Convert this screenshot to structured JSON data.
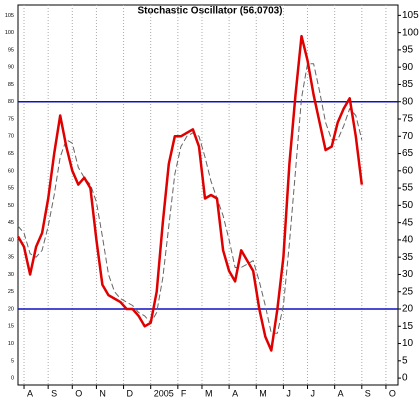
{
  "chart_data": {
    "type": "line",
    "title": "Stochastic Oscillator (56.0703)",
    "xlim": [
      0,
      63
    ],
    "xticks": [
      {
        "value": 1,
        "label": "A"
      },
      {
        "value": 5,
        "label": "S"
      },
      {
        "value": 9,
        "label": "O"
      },
      {
        "value": 13,
        "label": "N"
      },
      {
        "value": 17.5,
        "label": "D"
      },
      {
        "value": 22,
        "label": "2005"
      },
      {
        "value": 26.5,
        "label": "F"
      },
      {
        "value": 30.5,
        "label": "M"
      },
      {
        "value": 35,
        "label": "A"
      },
      {
        "value": 39.5,
        "label": "M"
      },
      {
        "value": 44,
        "label": "J"
      },
      {
        "value": 48,
        "label": "J"
      },
      {
        "value": 52.5,
        "label": "A"
      },
      {
        "value": 57,
        "label": "S"
      },
      {
        "value": 61,
        "label": "O"
      }
    ],
    "ylim": [
      -2,
      108
    ],
    "yticks": [
      0,
      5,
      10,
      15,
      20,
      25,
      30,
      35,
      40,
      45,
      50,
      55,
      60,
      65,
      70,
      75,
      80,
      85,
      90,
      95,
      100,
      105
    ],
    "grid": true,
    "reference_lines": {
      "values": [
        20,
        80
      ],
      "color": "#1010c0"
    },
    "x": [
      0,
      1,
      2,
      3,
      4,
      5,
      6,
      7,
      8,
      9,
      10,
      11,
      12,
      13,
      14,
      15,
      16,
      17,
      18,
      19,
      20,
      21,
      22,
      23,
      24,
      25,
      26,
      27,
      28,
      29,
      30,
      31,
      32,
      33,
      34,
      35,
      36,
      37,
      38,
      39,
      40,
      41,
      42,
      43,
      44,
      45,
      46,
      47,
      48,
      49,
      50,
      51,
      52,
      53,
      54,
      55,
      56,
      57
    ],
    "series": [
      {
        "color": "#666666",
        "dashed": true,
        "values": [
          44,
          42,
          36,
          35,
          37,
          44,
          53,
          64,
          69,
          68,
          61,
          58,
          56,
          51,
          41,
          30,
          25,
          23,
          22,
          21,
          19,
          18,
          16,
          19,
          29,
          44,
          59,
          67,
          70,
          71,
          70,
          64,
          57,
          52,
          47,
          40,
          32,
          32,
          33,
          34,
          28,
          21,
          13,
          13,
          21,
          39,
          60,
          81,
          91,
          91,
          83,
          74,
          69,
          69,
          73,
          78,
          76,
          69
        ]
      },
      {
        "color": "#e00000",
        "dashed": false,
        "values": [
          41,
          38,
          30,
          38,
          42,
          52,
          65,
          76,
          67,
          60,
          56,
          58,
          55,
          40,
          27,
          24,
          23,
          22,
          20,
          20,
          18,
          15,
          16,
          25,
          45,
          62,
          70,
          70,
          71,
          72,
          67,
          52,
          53,
          52,
          37,
          31,
          28,
          37,
          34,
          31,
          20,
          12,
          8,
          20,
          35,
          62,
          82,
          99,
          92,
          82,
          74,
          66,
          67,
          74,
          78,
          81,
          70,
          56
        ]
      }
    ]
  }
}
